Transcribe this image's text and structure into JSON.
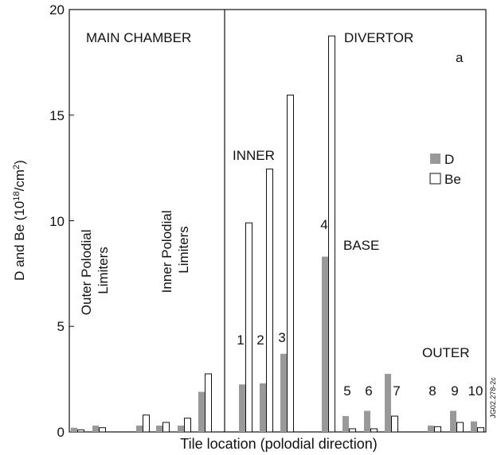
{
  "chart_data": {
    "type": "bar",
    "title": "",
    "xlabel": "Tile location (polodial direction)",
    "ylabel": "D and Be (10",
    "ylabel_sup": "18",
    "ylabel_unit": "/cm",
    "ylabel_sup2": "2",
    "ylabel_close": ")",
    "ylim": [
      0,
      20
    ],
    "yticks": [
      "0",
      "5",
      "10",
      "15",
      "20"
    ],
    "series": [
      {
        "name": "D",
        "color": "#999999"
      },
      {
        "name": "Be",
        "color": "#ffffff"
      }
    ],
    "groups": [
      {
        "D": 0.2,
        "Be": 0.1
      },
      {
        "D": 0.3,
        "Be": 0.2
      },
      {
        "D": 0.3,
        "Be": 0.8
      },
      {
        "D": 0.3,
        "Be": 0.45
      },
      {
        "D": 0.3,
        "Be": 0.65
      },
      {
        "D": 1.9,
        "Be": 2.75
      },
      {
        "D": 2.25,
        "Be": 9.9
      },
      {
        "D": 2.3,
        "Be": 12.45
      },
      {
        "D": 3.7,
        "Be": 15.95
      },
      {
        "D": 8.3,
        "Be": 18.75
      },
      {
        "D": 0.75,
        "Be": 0.15
      },
      {
        "D": 1.0,
        "Be": 0.15
      },
      {
        "D": 2.75,
        "Be": 0.75
      },
      {
        "D": 0.3,
        "Be": 0.25
      },
      {
        "D": 1.0,
        "Be": 0.45
      },
      {
        "D": 0.5,
        "Be": 0.2
      }
    ],
    "annotations": {
      "main_chamber": "MAIN CHAMBER",
      "divertor": "DIVERTOR",
      "panel": "a",
      "inner": "INNER",
      "base": "BASE",
      "outer": "OUTER",
      "outer_limiters": [
        "Outer Polodial",
        "Limiters"
      ],
      "inner_limiters": [
        "Inner Polodial",
        "Limiters"
      ],
      "tile_numbers": [
        "1",
        "2",
        "3",
        "4",
        "5",
        "6",
        "7",
        "8",
        "9",
        "10"
      ],
      "ref": "JG02.278-2c"
    }
  }
}
